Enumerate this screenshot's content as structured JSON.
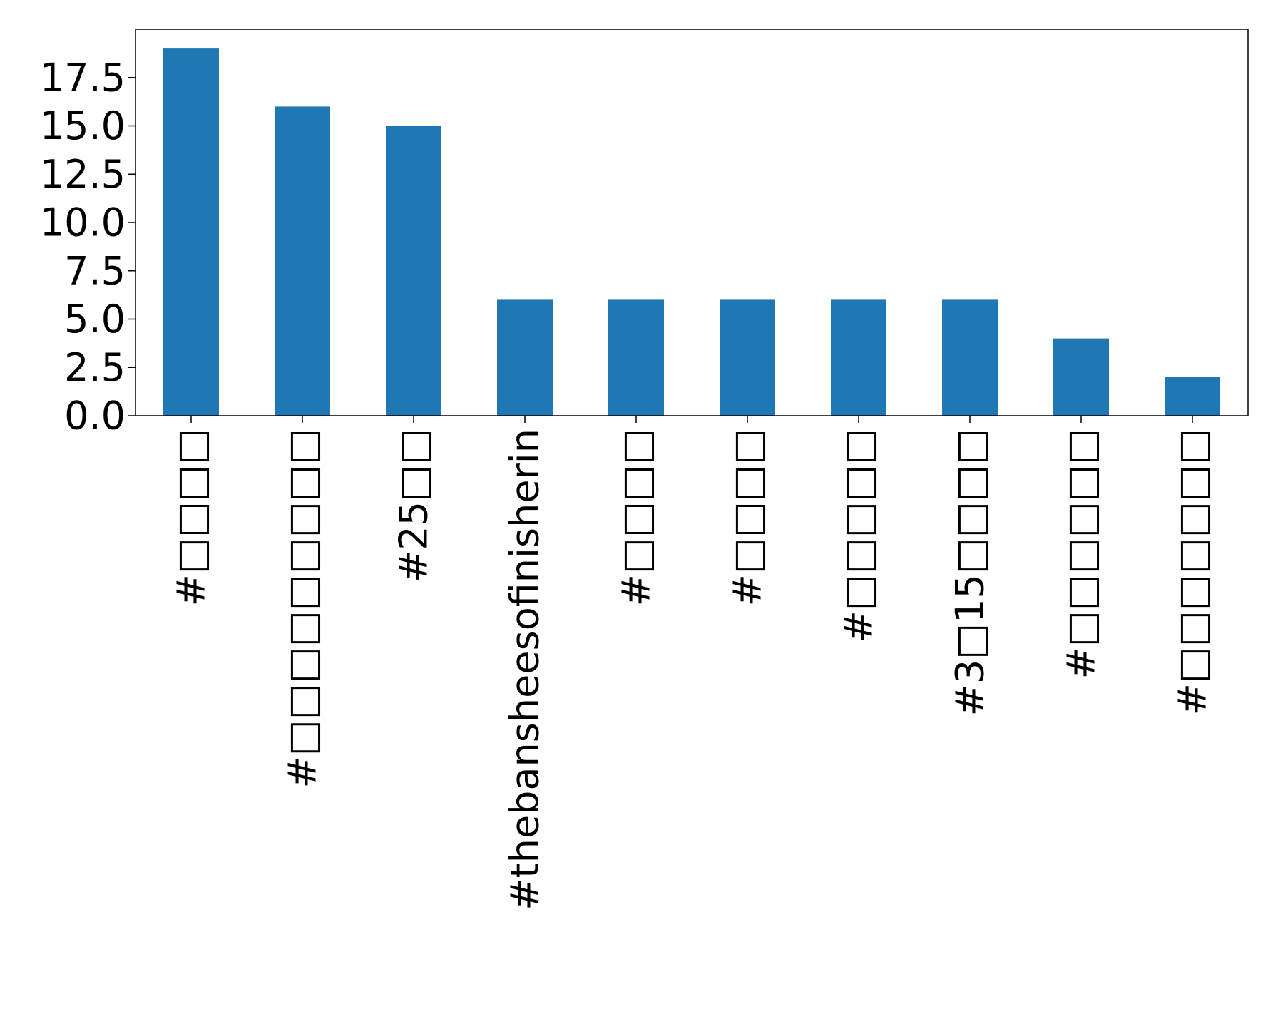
{
  "chart_data": {
    "type": "bar",
    "title": "",
    "xlabel": "",
    "ylabel": "",
    "categories": [
      "#□□□□",
      "#□□□□□□□□□",
      "#25□□",
      "#thebansheesofinisherin",
      "#□□□□",
      "#□□□□",
      "#□□□□□",
      "#3□15□□□□",
      "#□□□□□□",
      "#□□□□□□□"
    ],
    "values": [
      19,
      16,
      15,
      6,
      6,
      6,
      6,
      6,
      4,
      2
    ],
    "ylim": [
      0,
      20
    ],
    "yticks": [
      0.0,
      2.5,
      5.0,
      7.5,
      10.0,
      12.5,
      15.0,
      17.5
    ],
    "ytick_labels": [
      "0.0",
      "2.5",
      "5.0",
      "7.5",
      "10.0",
      "12.5",
      "15.0",
      "17.5"
    ],
    "bar_color": "#1f77b4",
    "grid": false,
    "legend": "none"
  }
}
